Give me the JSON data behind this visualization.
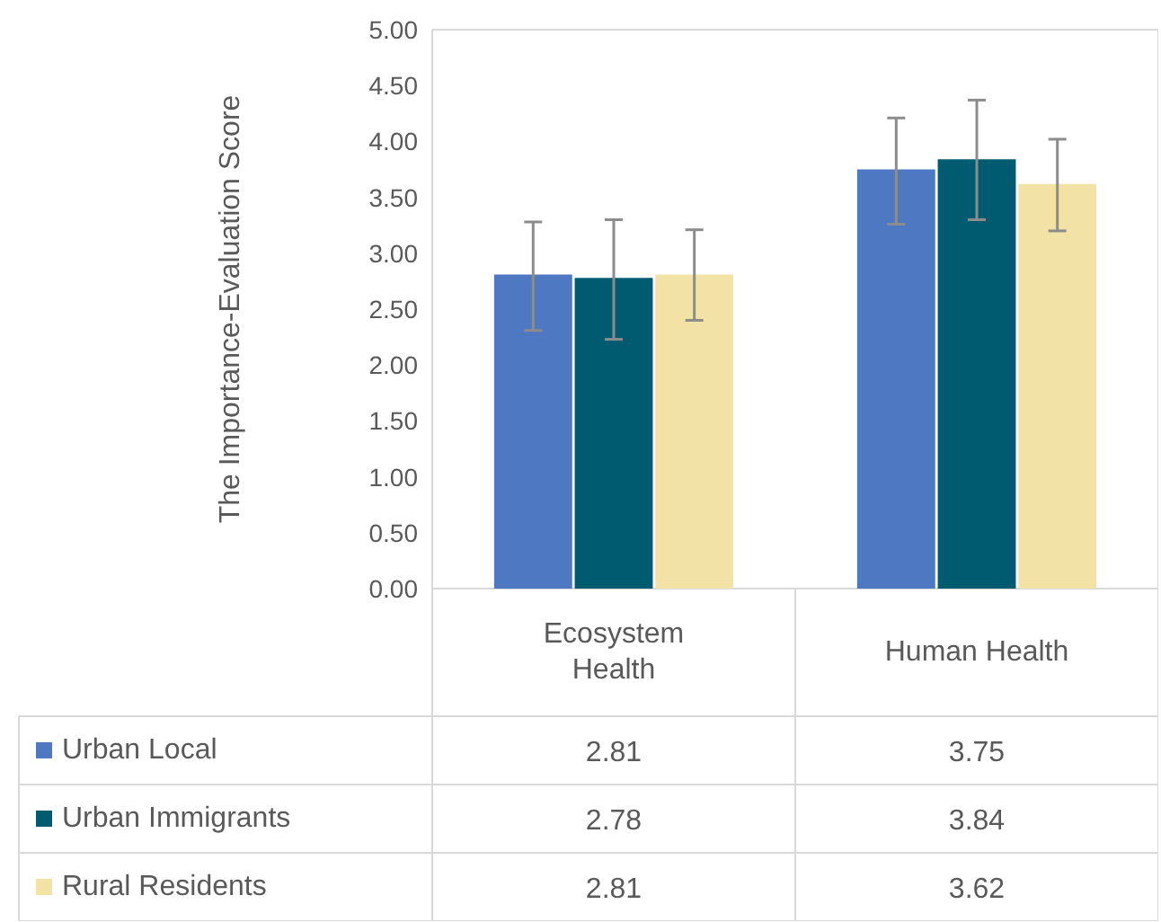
{
  "chart_data": {
    "type": "bar",
    "ylabel": "The Importance-Evaluation Score",
    "categories": [
      "Ecosystem Health",
      "Human Health"
    ],
    "series": [
      {
        "name": "Urban Local",
        "color": "#4e79c2",
        "values": [
          2.81,
          3.75
        ],
        "errors": [
          [
            2.31,
            3.28
          ],
          [
            3.26,
            4.21
          ]
        ]
      },
      {
        "name": "Urban Immigrants",
        "color": "#005b70",
        "values": [
          2.78,
          3.84
        ],
        "errors": [
          [
            2.23,
            3.3
          ],
          [
            3.3,
            4.37
          ]
        ]
      },
      {
        "name": "Rural Residents",
        "color": "#f3e2a5",
        "values": [
          2.81,
          3.62
        ],
        "errors": [
          [
            2.4,
            3.21
          ],
          [
            3.2,
            4.02
          ]
        ]
      }
    ],
    "ylim": [
      0,
      5
    ],
    "yticks": [
      {
        "value": 0,
        "label": "0.00"
      },
      {
        "value": 0.5,
        "label": "0.50"
      },
      {
        "value": 1,
        "label": "1.00"
      },
      {
        "value": 1.5,
        "label": "1.50"
      },
      {
        "value": 2,
        "label": "2.00"
      },
      {
        "value": 2.5,
        "label": "2.50"
      },
      {
        "value": 3,
        "label": "3.00"
      },
      {
        "value": 3.5,
        "label": "3.50"
      },
      {
        "value": 4,
        "label": "4.00"
      },
      {
        "value": 4.5,
        "label": "4.50"
      },
      {
        "value": 5,
        "label": "5.00"
      }
    ],
    "grid": false,
    "legend": "bottom",
    "data_labels": true
  }
}
